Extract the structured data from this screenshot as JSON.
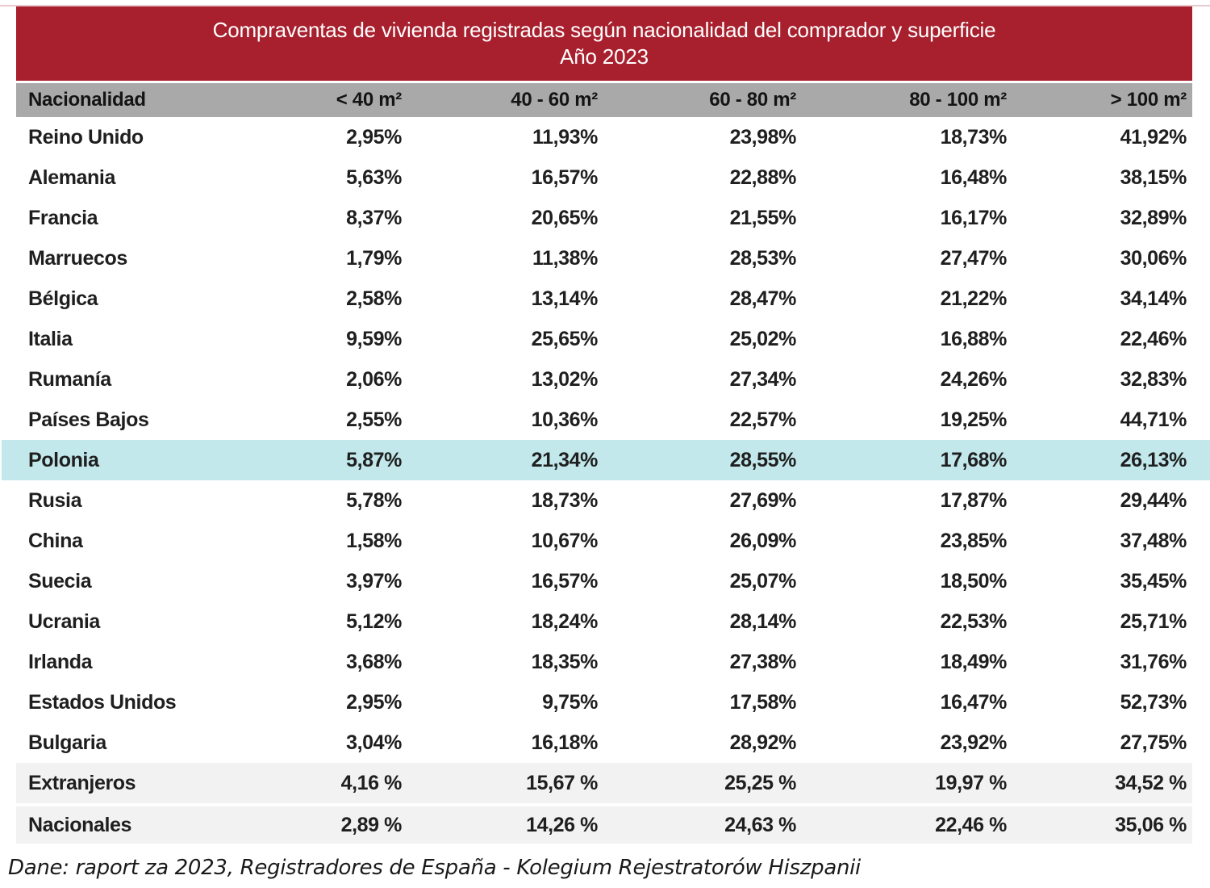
{
  "title": {
    "line1": "Compraventas de vivienda registradas según nacionalidad del comprador y superficie",
    "line2": "Año 2023"
  },
  "colors": {
    "title_bg": "#a8202e",
    "title_text": "#ffffff",
    "column_header_bg": "#a9a9a9",
    "highlight_row_bg": "#c2e8ec",
    "summary_row_bg": "#f2f2f2",
    "body_text": "#1f1f1f"
  },
  "table": {
    "columns": [
      "Nacionalidad",
      "< 40 m²",
      "40 - 60 m²",
      "60 - 80 m²",
      "80 - 100 m²",
      "> 100 m²"
    ],
    "rows": [
      {
        "name": "Reino Unido",
        "values": [
          "2,95%",
          "11,93%",
          "23,98%",
          "18,73%",
          "41,92%"
        ]
      },
      {
        "name": "Alemania",
        "values": [
          "5,63%",
          "16,57%",
          "22,88%",
          "16,48%",
          "38,15%"
        ]
      },
      {
        "name": "Francia",
        "values": [
          "8,37%",
          "20,65%",
          "21,55%",
          "16,17%",
          "32,89%"
        ]
      },
      {
        "name": "Marruecos",
        "values": [
          "1,79%",
          "11,38%",
          "28,53%",
          "27,47%",
          "30,06%"
        ]
      },
      {
        "name": "Bélgica",
        "values": [
          "2,58%",
          "13,14%",
          "28,47%",
          "21,22%",
          "34,14%"
        ]
      },
      {
        "name": "Italia",
        "values": [
          "9,59%",
          "25,65%",
          "25,02%",
          "16,88%",
          "22,46%"
        ]
      },
      {
        "name": "Rumanía",
        "values": [
          "2,06%",
          "13,02%",
          "27,34%",
          "24,26%",
          "32,83%"
        ]
      },
      {
        "name": "Países Bajos",
        "values": [
          "2,55%",
          "10,36%",
          "22,57%",
          "19,25%",
          "44,71%"
        ]
      },
      {
        "name": "Polonia",
        "values": [
          "5,87%",
          "21,34%",
          "28,55%",
          "17,68%",
          "26,13%"
        ],
        "highlight": true
      },
      {
        "name": "Rusia",
        "values": [
          "5,78%",
          "18,73%",
          "27,69%",
          "17,87%",
          "29,44%"
        ]
      },
      {
        "name": "China",
        "values": [
          "1,58%",
          "10,67%",
          "26,09%",
          "23,85%",
          "37,48%"
        ]
      },
      {
        "name": "Suecia",
        "values": [
          "3,97%",
          "16,57%",
          "25,07%",
          "18,50%",
          "35,45%"
        ]
      },
      {
        "name": "Ucrania",
        "values": [
          "5,12%",
          "18,24%",
          "28,14%",
          "22,53%",
          "25,71%"
        ]
      },
      {
        "name": "Irlanda",
        "values": [
          "3,68%",
          "18,35%",
          "27,38%",
          "18,49%",
          "31,76%"
        ]
      },
      {
        "name": "Estados Unidos",
        "values": [
          "2,95%",
          "9,75%",
          "17,58%",
          "16,47%",
          "52,73%"
        ]
      },
      {
        "name": "Bulgaria",
        "values": [
          "3,04%",
          "16,18%",
          "28,92%",
          "23,92%",
          "27,75%"
        ]
      },
      {
        "name": "Extranjeros",
        "values": [
          "4,16 %",
          "15,67 %",
          "25,25 %",
          "19,97 %",
          "34,52 %"
        ],
        "summary": true
      },
      {
        "name": "Nacionales",
        "values": [
          "2,89 %",
          "14,26 %",
          "24,63 %",
          "22,46 %",
          "35,06 %"
        ],
        "summary": true
      }
    ]
  },
  "footer": {
    "source": "Dane: raport za 2023, Registradores de España - Kolegium Rejestratorów Hiszpanii"
  },
  "chart_data": {
    "type": "table",
    "title": "Compraventas de vivienda registradas según nacionalidad del comprador y superficie",
    "subtitle": "Año 2023",
    "columns": [
      "Nacionalidad",
      "< 40 m²",
      "40 - 60 m²",
      "60 - 80 m²",
      "80 - 100 m²",
      "> 100 m²"
    ],
    "unit": "percent",
    "rows_percent": [
      [
        "Reino Unido",
        2.95,
        11.93,
        23.98,
        18.73,
        41.92
      ],
      [
        "Alemania",
        5.63,
        16.57,
        22.88,
        16.48,
        38.15
      ],
      [
        "Francia",
        8.37,
        20.65,
        21.55,
        16.17,
        32.89
      ],
      [
        "Marruecos",
        1.79,
        11.38,
        28.53,
        27.47,
        30.06
      ],
      [
        "Bélgica",
        2.58,
        13.14,
        28.47,
        21.22,
        34.14
      ],
      [
        "Italia",
        9.59,
        25.65,
        25.02,
        16.88,
        22.46
      ],
      [
        "Rumanía",
        2.06,
        13.02,
        27.34,
        24.26,
        32.83
      ],
      [
        "Países Bajos",
        2.55,
        10.36,
        22.57,
        19.25,
        44.71
      ],
      [
        "Polonia",
        5.87,
        21.34,
        28.55,
        17.68,
        26.13
      ],
      [
        "Rusia",
        5.78,
        18.73,
        27.69,
        17.87,
        29.44
      ],
      [
        "China",
        1.58,
        10.67,
        26.09,
        23.85,
        37.48
      ],
      [
        "Suecia",
        3.97,
        16.57,
        25.07,
        18.5,
        35.45
      ],
      [
        "Ucrania",
        5.12,
        18.24,
        28.14,
        22.53,
        25.71
      ],
      [
        "Irlanda",
        3.68,
        18.35,
        27.38,
        18.49,
        31.76
      ],
      [
        "Estados Unidos",
        2.95,
        9.75,
        17.58,
        16.47,
        52.73
      ],
      [
        "Bulgaria",
        3.04,
        16.18,
        28.92,
        23.92,
        27.75
      ]
    ],
    "summary_rows_percent": [
      [
        "Extranjeros",
        4.16,
        15.67,
        25.25,
        19.97,
        34.52
      ],
      [
        "Nacionales",
        2.89,
        14.26,
        24.63,
        22.46,
        35.06
      ]
    ],
    "highlighted_row": "Polonia",
    "source": "Dane: raport za 2023, Registradores de España - Kolegium Rejestratorów Hiszpanii"
  }
}
